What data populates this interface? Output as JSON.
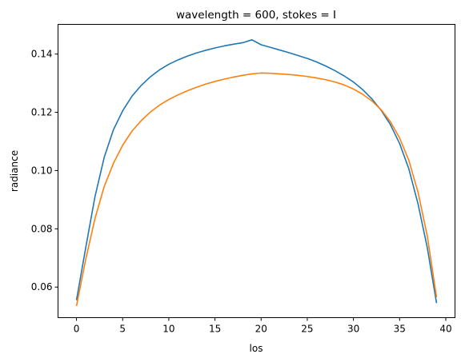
{
  "chart_data": {
    "type": "line",
    "title": "wavelength = 600, stokes = I",
    "xlabel": "los",
    "ylabel": "radiance",
    "xlim": [
      -2,
      41
    ],
    "ylim": [
      0.0495,
      0.1502
    ],
    "xticks": [
      0,
      5,
      10,
      15,
      20,
      25,
      30,
      35,
      40
    ],
    "yticks": [
      0.06,
      0.08,
      0.1,
      0.12,
      0.14
    ],
    "ytick_labels": [
      "0.06",
      "0.08",
      "0.10",
      "0.12",
      "0.14"
    ],
    "grid": false,
    "x": [
      0,
      1,
      2,
      3,
      4,
      5,
      6,
      7,
      8,
      9,
      10,
      11,
      12,
      13,
      14,
      15,
      16,
      17,
      18,
      19,
      20,
      21,
      22,
      23,
      24,
      25,
      26,
      27,
      28,
      29,
      30,
      31,
      32,
      33,
      34,
      35,
      36,
      37,
      38,
      39
    ],
    "series": [
      {
        "color": "#1f77b4",
        "values": [
          0.0555,
          0.0735,
          0.091,
          0.1045,
          0.114,
          0.1205,
          0.1255,
          0.1292,
          0.1322,
          0.1346,
          0.1365,
          0.138,
          0.1393,
          0.1404,
          0.1413,
          0.1421,
          0.1428,
          0.1434,
          0.1439,
          0.1449,
          0.1432,
          0.1423,
          0.1414,
          0.1405,
          0.1395,
          0.1385,
          0.1373,
          0.1359,
          0.1343,
          0.1325,
          0.1304,
          0.1278,
          0.1246,
          0.1207,
          0.1158,
          0.1093,
          0.1006,
          0.0885,
          0.0735,
          0.0545
        ]
      },
      {
        "color": "#ff7f0e",
        "values": [
          0.0535,
          0.0695,
          0.0835,
          0.0945,
          0.1025,
          0.1087,
          0.1135,
          0.1171,
          0.1201,
          0.1225,
          0.1244,
          0.126,
          0.1274,
          0.1286,
          0.1297,
          0.1306,
          0.1314,
          0.1321,
          0.1327,
          0.1332,
          0.1335,
          0.1334,
          0.1332,
          0.133,
          0.1327,
          0.1323,
          0.1318,
          0.1312,
          0.1304,
          0.1294,
          0.128,
          0.1262,
          0.1239,
          0.1209,
          0.1168,
          0.1112,
          0.1035,
          0.0925,
          0.0775,
          0.0565
        ]
      }
    ]
  }
}
